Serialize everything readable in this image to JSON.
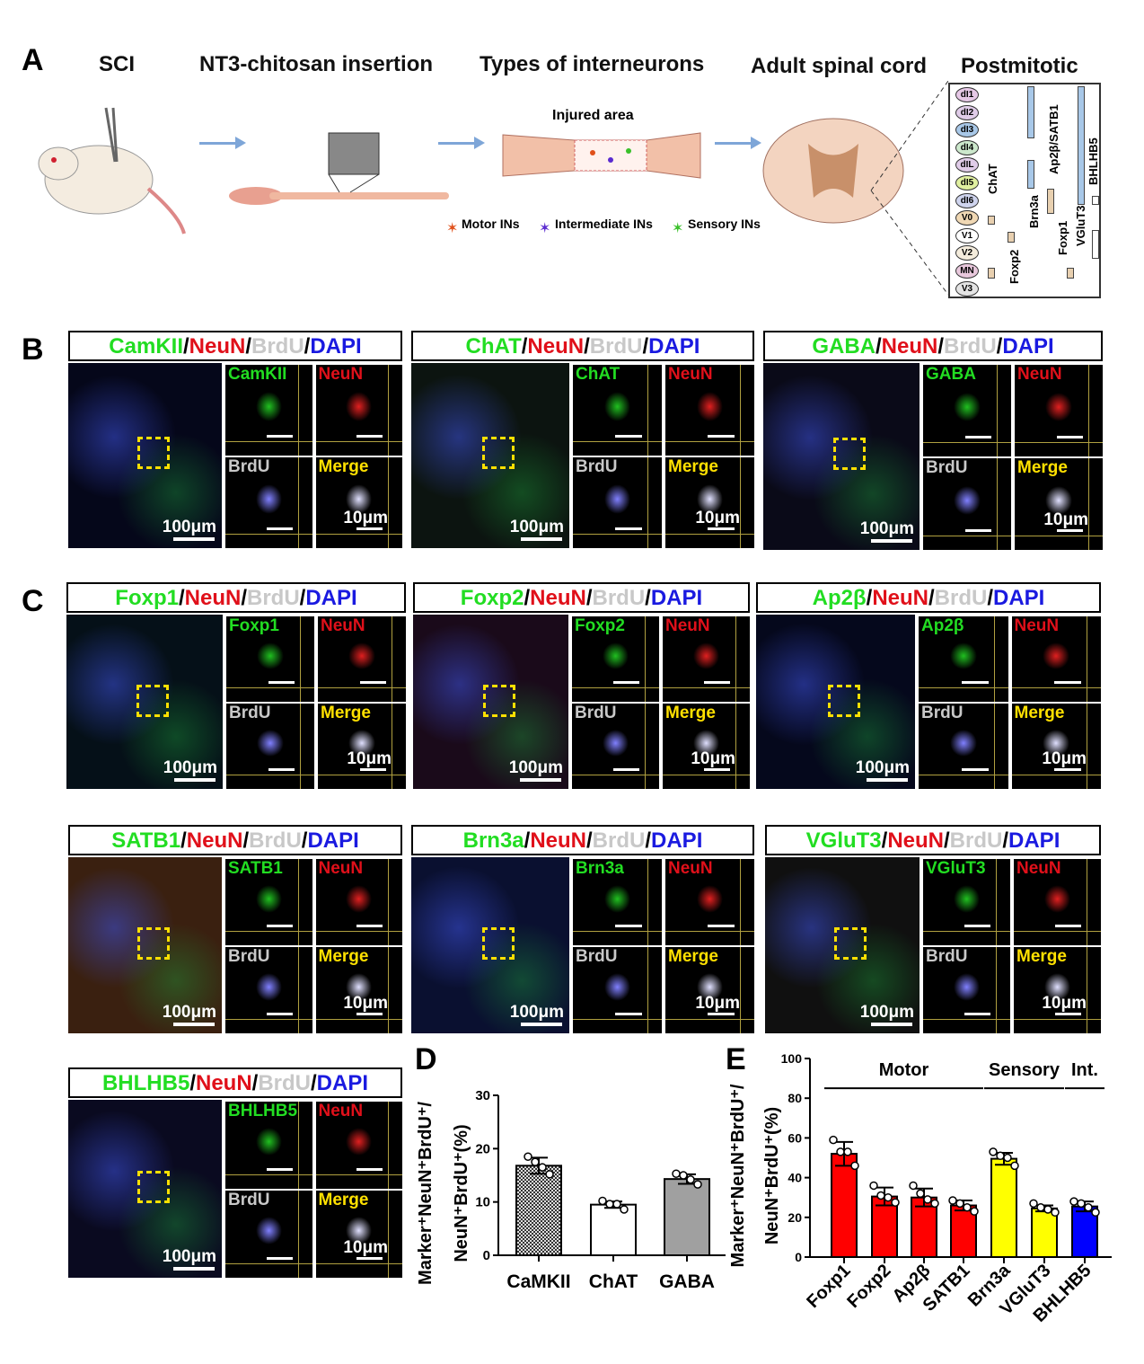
{
  "panel_labels": {
    "a": "A",
    "b": "B",
    "c": "C",
    "d": "D",
    "e": "E"
  },
  "panel_a": {
    "headings": [
      "SCI",
      "NT3-chitosan insertion",
      "Types of interneurons",
      "Adult spinal cord",
      "Postmitotic"
    ],
    "injured_area": "Injured area",
    "legend": [
      "Motor INs",
      "Intermediate INs",
      "Sensory INs"
    ],
    "legend_colors": [
      "#e0501a",
      "#5a2ad0",
      "#3ac02a"
    ],
    "progenitors": [
      {
        "name": "dI1",
        "color": "#e6c8e6"
      },
      {
        "name": "dI2",
        "color": "#e0cce8"
      },
      {
        "name": "dI3",
        "color": "#a8c8e8"
      },
      {
        "name": "dI4",
        "color": "#cce8cc"
      },
      {
        "name": "dIL",
        "color": "#e0cce8"
      },
      {
        "name": "dI5",
        "color": "#e0f0a0"
      },
      {
        "name": "dI6",
        "color": "#cfd4ee"
      },
      {
        "name": "V0",
        "color": "#f0d8b4"
      },
      {
        "name": "V1",
        "color": "#ffffff"
      },
      {
        "name": "V2",
        "color": "#f4ecdc"
      },
      {
        "name": "MN",
        "color": "#e8c8dc"
      },
      {
        "name": "V3",
        "color": "#e4e4e4"
      }
    ],
    "markers": [
      "ChAT",
      "Foxp2",
      "Brn3a",
      "Ap2β/SATB1",
      "Foxp1",
      "VGluT3",
      "BHLHB5"
    ]
  },
  "stain": {
    "neun": "NeuN",
    "brdu": "BrdU",
    "dapi": "DAPI",
    "sep": "/",
    "merge": "Merge",
    "scale_large": "100μm",
    "scale_small": "10μm"
  },
  "if_panels": [
    {
      "marker": "CamKII"
    },
    {
      "marker": "ChAT"
    },
    {
      "marker": "GABA"
    },
    {
      "marker": "Foxp1"
    },
    {
      "marker": "Foxp2"
    },
    {
      "marker": "Ap2β"
    },
    {
      "marker": "SATB1"
    },
    {
      "marker": "Brn3a"
    },
    {
      "marker": "VGluT3"
    },
    {
      "marker": "BHLHB5"
    }
  ],
  "chart_data": [
    {
      "type": "bar",
      "panel": "D",
      "title": "",
      "ylabel": "Marker⁺NeuN⁺BrdU⁺/ NeuN⁺BrdU⁺(%)",
      "ylabel_lines": [
        "Marker⁺NeuN⁺BrdU⁺/",
        "NeuN⁺BrdU⁺(%)"
      ],
      "ylim": [
        0,
        30
      ],
      "yticks": [
        0,
        10,
        20,
        30
      ],
      "categories": [
        "CaMKII",
        "ChAT",
        "GABA"
      ],
      "values": [
        16.8,
        9.5,
        14.3
      ],
      "sd": [
        1.5,
        0.6,
        0.9
      ],
      "points": [
        [
          18.5,
          17.5,
          16.5,
          15.2
        ],
        [
          10.2,
          9.6,
          9.6,
          8.6
        ],
        [
          15.3,
          15.0,
          14.2,
          13.3
        ]
      ],
      "colors": [
        "#555555",
        "#ffffff",
        "#a0a0a0"
      ],
      "patterns": [
        "checker",
        "solid",
        "solid"
      ]
    },
    {
      "type": "bar",
      "panel": "E",
      "title": "",
      "ylabel": "Marker⁺NeuN⁺BrdU⁺/ NeuN⁺BrdU⁺(%)",
      "ylabel_lines": [
        "Marker⁺NeuN⁺BrdU⁺/",
        "NeuN⁺BrdU⁺(%)"
      ],
      "ylim": [
        0,
        100
      ],
      "yticks": [
        0,
        20,
        40,
        60,
        80,
        100
      ],
      "categories": [
        "Foxp1",
        "Foxp2",
        "Ap2β",
        "SATB1",
        "Brn3a",
        "VGluT3",
        "BHLHB5"
      ],
      "values": [
        52,
        30.5,
        30,
        26,
        49.5,
        24.5,
        25.5
      ],
      "sd": [
        6,
        4.5,
        4.5,
        2.5,
        3,
        1.5,
        2.5
      ],
      "points": [
        [
          59,
          53,
          53,
          46
        ],
        [
          36,
          31,
          30,
          27.5
        ],
        [
          36,
          32,
          29,
          27
        ],
        [
          28.5,
          27,
          25,
          23
        ],
        [
          53,
          51,
          50,
          46
        ],
        [
          27,
          25,
          24,
          22.5
        ],
        [
          28,
          27,
          25,
          22.5
        ]
      ],
      "colors": [
        "#ff0000",
        "#ff0000",
        "#ff0000",
        "#ff0000",
        "#ffff00",
        "#ffff00",
        "#0000ff"
      ],
      "groups": [
        {
          "label": "Motor",
          "from": 0,
          "to": 3
        },
        {
          "label": "Sensory",
          "from": 4,
          "to": 5
        },
        {
          "label": "Int.",
          "from": 6,
          "to": 6
        }
      ]
    }
  ]
}
